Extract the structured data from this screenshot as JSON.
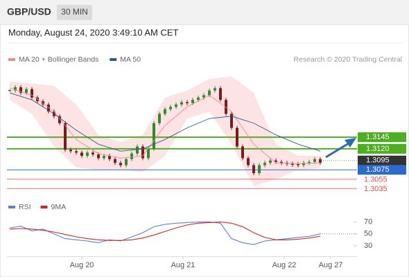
{
  "header": {
    "symbol": "GBP/USD",
    "timeframe": "30 MIN",
    "timestamp": "Monday, August 24, 2020 3:49:10 AM CET"
  },
  "chart_data": [
    {
      "type": "candlestick",
      "credit": "Research © 2020 Trading Central",
      "up_color": "#2e8b2e",
      "down_color": "#7a1c1c",
      "ylim": [
        1.3016,
        1.3298
      ],
      "close": [
        1.3245,
        1.3252,
        1.324,
        1.3248,
        1.323,
        1.3222,
        1.3215,
        1.32,
        1.319,
        1.3175,
        1.3118,
        1.3115,
        1.3112,
        1.3105,
        1.3112,
        1.3108,
        1.31,
        1.3105,
        1.3098,
        1.309,
        1.3085,
        1.3098,
        1.311,
        1.3125,
        1.31,
        1.312,
        1.3175,
        1.3195,
        1.3205,
        1.321,
        1.3215,
        1.322,
        1.3218,
        1.3225,
        1.323,
        1.3235,
        1.3245,
        1.325,
        1.3225,
        1.3195,
        1.3165,
        1.3125,
        1.31,
        1.3085,
        1.3068,
        1.3085,
        1.309,
        1.3095,
        1.3092,
        1.309,
        1.3088,
        1.3087,
        1.3085,
        1.309,
        1.3092,
        1.3098,
        1.309
      ],
      "overlays": [
        {
          "name": "MA 20 + Bollinger Bands",
          "color": "#f08a8a",
          "band_color": "#fde3e3",
          "values": [
            1.325,
            1.3235,
            1.32,
            1.314,
            1.311,
            1.31,
            1.3105,
            1.317,
            1.321,
            1.3235,
            1.32,
            1.313,
            1.309,
            1.3088,
            1.309
          ],
          "upper": [
            1.3265,
            1.326,
            1.3255,
            1.3215,
            1.315,
            1.3135,
            1.315,
            1.323,
            1.3245,
            1.327,
            1.3275,
            1.324,
            1.313,
            1.3105,
            1.3105
          ],
          "lower": [
            1.3225,
            1.3195,
            1.3125,
            1.308,
            1.3075,
            1.3075,
            1.307,
            1.3105,
            1.3185,
            1.32,
            1.313,
            1.304,
            1.3055,
            1.3075,
            1.3078
          ]
        },
        {
          "name": "MA 50",
          "color": "#2b5c8a",
          "values": [
            1.324,
            1.3225,
            1.3195,
            1.316,
            1.313,
            1.3115,
            1.312,
            1.314,
            1.3165,
            1.3185,
            1.319,
            1.3175,
            1.315,
            1.313,
            1.3115
          ]
        }
      ],
      "levels": [
        {
          "value": 1.3145,
          "label": "1.3145",
          "color": "#4caf1f",
          "style": "box",
          "dotted": false
        },
        {
          "value": 1.312,
          "label": "1.3120",
          "color": "#4caf1f",
          "style": "box",
          "dotted": false
        },
        {
          "value": 1.3095,
          "label": "1.3095",
          "color": "#333333",
          "style": "box",
          "dotted": true
        },
        {
          "value": 1.3075,
          "label": "1.3075",
          "color": "#2a6bcf",
          "style": "box",
          "dotted": false
        },
        {
          "value": 1.3055,
          "label": "1.3055",
          "color": "#e05050",
          "style": "text",
          "dotted": false
        },
        {
          "value": 1.3035,
          "label": "1.3035",
          "color": "#e05050",
          "style": "text",
          "dotted": false
        }
      ]
    },
    {
      "type": "line",
      "series": [
        {
          "name": "RSI",
          "color": "#5b7fd6",
          "values": [
            60,
            63,
            55,
            58,
            50,
            42,
            40,
            38,
            35,
            40,
            38,
            45,
            52,
            62,
            66,
            68,
            69,
            70,
            70,
            68,
            42,
            35,
            32,
            38,
            40,
            42,
            44,
            46,
            50
          ]
        },
        {
          "name": "9MA",
          "color": "#e02020",
          "values": [
            58,
            59,
            58,
            56,
            53,
            49,
            45,
            42,
            40,
            39,
            39,
            40,
            43,
            48,
            54,
            60,
            65,
            68,
            69,
            70,
            68,
            62,
            52,
            44,
            40,
            40,
            41,
            43,
            46
          ]
        }
      ],
      "ylim": [
        10,
        80
      ],
      "yticks": [
        30,
        50,
        70
      ],
      "x_labels": [
        "Aug 20",
        "Aug 21",
        "Aug 22",
        "Aug 27"
      ]
    }
  ]
}
